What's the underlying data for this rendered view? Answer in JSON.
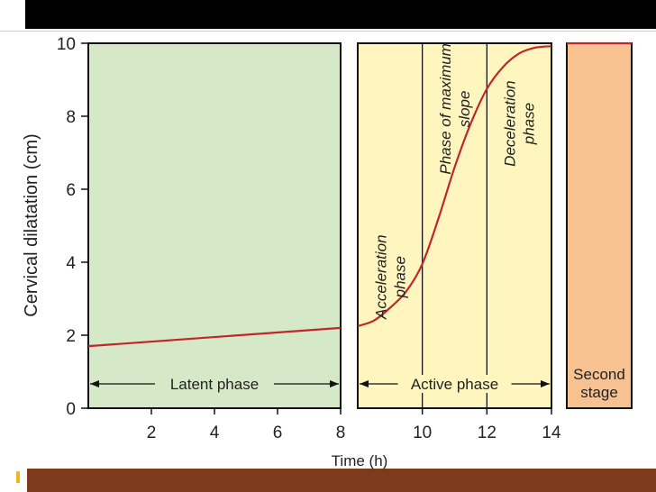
{
  "colors": {
    "top_bar": "#000000",
    "bottom_bar": "#7e3a1c",
    "bullet": "#f2b51b",
    "latent_fill": "#d5e8c8",
    "active_fill": "#fff6bf",
    "second_fill": "#f7c28f",
    "curve": "#c0272d"
  },
  "chart_data": {
    "type": "line",
    "xlabel": "Time (h)",
    "ylabel": "Cervical dilatation (cm)",
    "xlim": [
      0,
      14
    ],
    "ylim": [
      0,
      10
    ],
    "xticks": [
      2,
      4,
      6,
      8,
      10,
      12,
      14
    ],
    "yticks": [
      0,
      2,
      4,
      6,
      8,
      10
    ],
    "series": [
      {
        "segment": "latent",
        "x": [
          0,
          8
        ],
        "y": [
          1.7,
          2.2
        ]
      },
      {
        "segment": "active",
        "x": [
          8,
          8.5,
          9,
          9.5,
          10,
          10.5,
          11,
          11.5,
          12,
          12.5,
          13,
          13.5,
          14
        ],
        "y": [
          2.25,
          2.4,
          2.75,
          3.2,
          3.95,
          5.2,
          6.6,
          7.8,
          8.75,
          9.35,
          9.72,
          9.88,
          9.92
        ]
      },
      {
        "segment": "second-stage",
        "x": [
          0,
          1
        ],
        "y": [
          10,
          10
        ]
      }
    ],
    "panels": [
      {
        "name": "latent",
        "x_range": [
          0,
          8
        ],
        "label": "Latent phase"
      },
      {
        "name": "active",
        "x_range": [
          8,
          14
        ],
        "label": "Active phase",
        "dividers": [
          10,
          12
        ],
        "phase_labels": [
          {
            "lines": [
              "Acceleration",
              "phase"
            ],
            "x": 9,
            "y": 3.6
          },
          {
            "lines": [
              "Phase of maximum",
              "slope"
            ],
            "x": 11,
            "y": 8.2
          },
          {
            "lines": [
              "Deceleration",
              "phase"
            ],
            "x": 13,
            "y": 7.8
          }
        ]
      },
      {
        "name": "second-stage",
        "label_lines": [
          "Second",
          "stage"
        ]
      }
    ]
  }
}
